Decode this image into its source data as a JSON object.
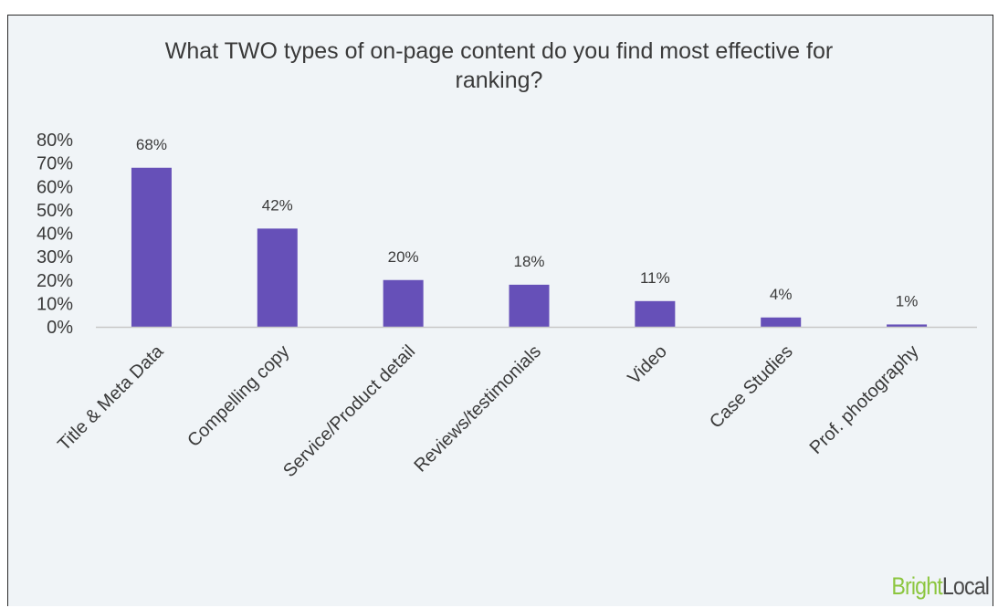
{
  "chart_data": {
    "type": "bar",
    "title": "What TWO types of on-page content do you find most effective for ranking?",
    "title_lines": [
      "What TWO types of on-page content do you find most effective for",
      "ranking?"
    ],
    "categories": [
      "Title & Meta Data",
      "Compelling copy",
      "Service/Product detail",
      "Reviews/testimonials",
      "Video",
      "Case Studies",
      "Prof. photography"
    ],
    "values": [
      68,
      42,
      20,
      18,
      11,
      4,
      1
    ],
    "value_labels": [
      "68%",
      "42%",
      "20%",
      "18%",
      "11%",
      "4%",
      "1%"
    ],
    "ylim": [
      0,
      80
    ],
    "y_ticks": [
      0,
      10,
      20,
      30,
      40,
      50,
      60,
      70,
      80
    ],
    "y_tick_labels": [
      "0%",
      "10%",
      "20%",
      "30%",
      "40%",
      "50%",
      "60%",
      "70%",
      "80%"
    ],
    "xlabel": "",
    "ylabel": "",
    "grid": false,
    "bar_color": "#6650b8",
    "axis_color": "#c8c8c8"
  },
  "brand": {
    "part1": "Bright",
    "part2": "Local",
    "part1_color": "#8cc63f",
    "part2_color": "#4a4a4a"
  }
}
